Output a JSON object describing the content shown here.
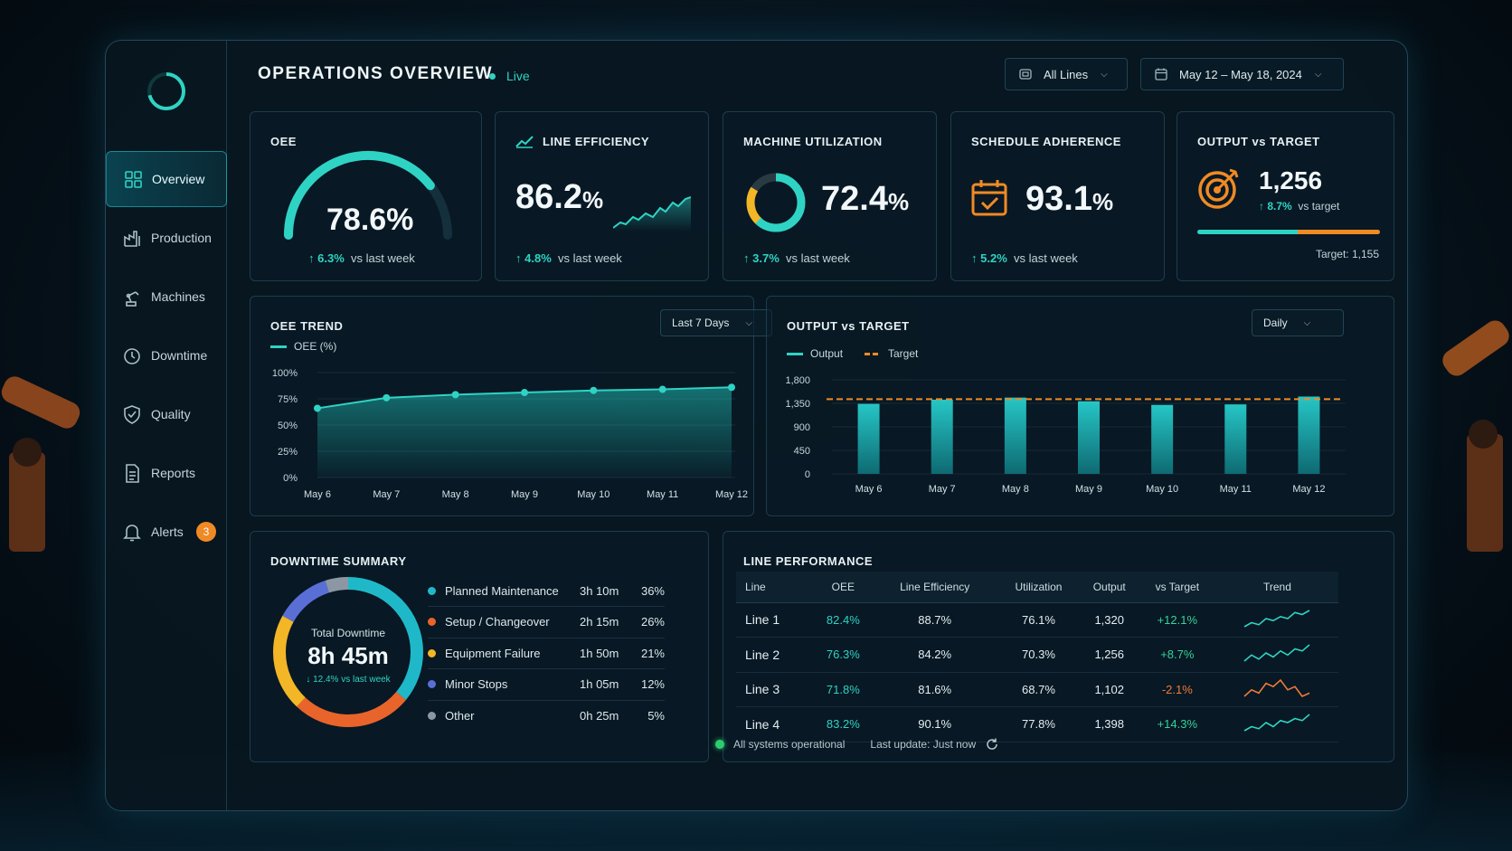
{
  "colors": {
    "accent": "#2fd3c4",
    "orange": "#f08a24",
    "positive": "#35d39a",
    "negative": "#f07a3a"
  },
  "header": {
    "title": "OPERATIONS OVERVIEW",
    "live": "Live",
    "lines_select": "All Lines",
    "date_select": "May 12 – May 18, 2024"
  },
  "sidebar": {
    "items": [
      {
        "label": "Overview",
        "icon": "grid-icon",
        "active": true
      },
      {
        "label": "Production",
        "icon": "factory-icon"
      },
      {
        "label": "Machines",
        "icon": "robot-arm-icon"
      },
      {
        "label": "Downtime",
        "icon": "clock-icon"
      },
      {
        "label": "Quality",
        "icon": "shield-check-icon"
      },
      {
        "label": "Reports",
        "icon": "document-icon"
      },
      {
        "label": "Alerts",
        "icon": "bell-icon",
        "badge": "3"
      }
    ]
  },
  "kpis": {
    "oee": {
      "title": "OEE",
      "value": "78.6%",
      "delta": "6.3%",
      "delta_label": "vs last week",
      "gauge_fraction": 0.786
    },
    "line_eff": {
      "title": "LINE EFFICIENCY",
      "value": "86.2",
      "unit": "%",
      "delta": "4.8%",
      "delta_label": "vs last week"
    },
    "machine_util": {
      "title": "MACHINE UTILIZATION",
      "value": "72.4",
      "unit": "%",
      "delta": "3.7%",
      "delta_label": "vs last week",
      "ring_fraction": 0.724
    },
    "schedule": {
      "title": "SCHEDULE ADHERENCE",
      "value": "93.1",
      "unit": "%",
      "delta": "5.2%",
      "delta_label": "vs last week"
    },
    "output": {
      "title": "OUTPUT vs TARGET",
      "value": "1,256",
      "delta": "8.7%",
      "delta_label": "vs target",
      "target_label": "Target: 1,155",
      "progress_fraction": 1.0
    }
  },
  "oee_trend": {
    "title": "OEE TREND",
    "range_select": "Last 7 Days",
    "legend": "OEE (%)",
    "chart_data": {
      "type": "area",
      "categories": [
        "May 6",
        "May 7",
        "May 8",
        "May 9",
        "May 10",
        "May 11",
        "May 12"
      ],
      "series": [
        {
          "name": "OEE (%)",
          "values": [
            66,
            76,
            79,
            81,
            83,
            84,
            86
          ]
        }
      ],
      "yticks": [
        "0%",
        "25%",
        "50%",
        "75%",
        "100%"
      ],
      "ylim": [
        0,
        100
      ]
    }
  },
  "output_vs_target": {
    "title": "OUTPUT vs TARGET",
    "range_select": "Daily",
    "legend_output": "Output",
    "legend_target": "Target",
    "chart_data": {
      "type": "bar",
      "categories": [
        "May 6",
        "May 7",
        "May 8",
        "May 9",
        "May 10",
        "May 11",
        "May 12"
      ],
      "series": [
        {
          "name": "Output",
          "values": [
            1340,
            1420,
            1460,
            1390,
            1320,
            1330,
            1480
          ]
        }
      ],
      "target": 1430,
      "yticks": [
        "0",
        "450",
        "900",
        "1,350",
        "1,800"
      ],
      "ylim": [
        0,
        1800
      ]
    }
  },
  "downtime": {
    "title": "DOWNTIME SUMMARY",
    "center_label": "Total Downtime",
    "center_value": "8h 45m",
    "center_delta": "↓ 12.4% vs last week",
    "items": [
      {
        "name": "Planned Maintenance",
        "time": "3h 10m",
        "pct": "36%",
        "color": "#1fb8c9",
        "value": 36
      },
      {
        "name": "Setup / Changeover",
        "time": "2h 15m",
        "pct": "26%",
        "color": "#e8642a",
        "value": 26
      },
      {
        "name": "Equipment Failure",
        "time": "1h 50m",
        "pct": "21%",
        "color": "#f2b626",
        "value": 21
      },
      {
        "name": "Minor Stops",
        "time": "1h 05m",
        "pct": "12%",
        "color": "#5a6fd6",
        "value": 12
      },
      {
        "name": "Other",
        "time": "0h 25m",
        "pct": "5%",
        "color": "#8b97a3",
        "value": 5
      }
    ]
  },
  "line_performance": {
    "title": "LINE PERFORMANCE",
    "columns": [
      "Line",
      "OEE",
      "Line Efficiency",
      "Utilization",
      "Output",
      "vs Target",
      "Trend"
    ],
    "rows": [
      {
        "line": "Line 1",
        "oee": "82.4%",
        "eff": "88.7%",
        "util": "76.1%",
        "output": "1,320",
        "vs": "+12.1%",
        "trend": [
          4,
          6,
          5,
          8,
          7,
          9,
          8,
          11,
          10,
          12
        ],
        "up": true
      },
      {
        "line": "Line 2",
        "oee": "76.3%",
        "eff": "84.2%",
        "util": "70.3%",
        "output": "1,256",
        "vs": "+8.7%",
        "trend": [
          4,
          7,
          5,
          8,
          6,
          9,
          7,
          10,
          9,
          12
        ],
        "up": true
      },
      {
        "line": "Line 3",
        "oee": "71.8%",
        "eff": "81.6%",
        "util": "68.7%",
        "output": "1,102",
        "vs": "-2.1%",
        "trend": [
          5,
          7,
          6,
          9,
          8,
          10,
          7,
          8,
          5,
          6
        ],
        "up": false
      },
      {
        "line": "Line 4",
        "oee": "83.2%",
        "eff": "90.1%",
        "util": "77.8%",
        "output": "1,398",
        "vs": "+14.3%",
        "trend": [
          4,
          6,
          5,
          8,
          6,
          9,
          8,
          10,
          9,
          12
        ],
        "up": true
      }
    ]
  },
  "footer": {
    "status": "All systems operational",
    "last_update": "Last update: Just now"
  }
}
